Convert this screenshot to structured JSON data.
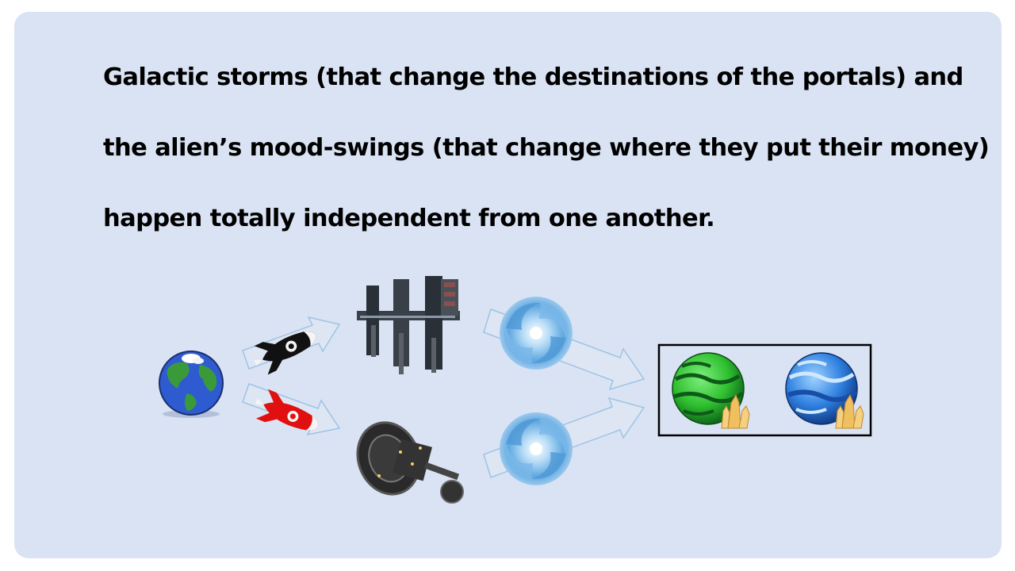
{
  "text": {
    "line1": "Galactic storms (that change the destinations of the portals) and",
    "line2": "the alien’s mood-swings (that change where they put their money)",
    "line3": "happen totally independent from one another."
  },
  "colors": {
    "background": "#dae3f3",
    "arrow_fill": "#dee6f3",
    "arrow_stroke": "#9dc3e6",
    "earth_ocean": "#2f5bd0",
    "earth_land": "#3a9a3a",
    "rocket_black": "#111111",
    "rocket_red": "#e01010",
    "portal_blue": "#5fa8e0",
    "planet_green": "#30c030",
    "planet_blue": "#2f80e0",
    "crystal": "#f0c060",
    "box_border": "#000000"
  },
  "icons": [
    "earth-icon",
    "black-rocket-icon",
    "red-rocket-icon",
    "space-station-top-icon",
    "space-station-bottom-icon",
    "portal-top-icon",
    "portal-bottom-icon",
    "green-planet-icon",
    "blue-planet-icon",
    "crystal-icon"
  ]
}
